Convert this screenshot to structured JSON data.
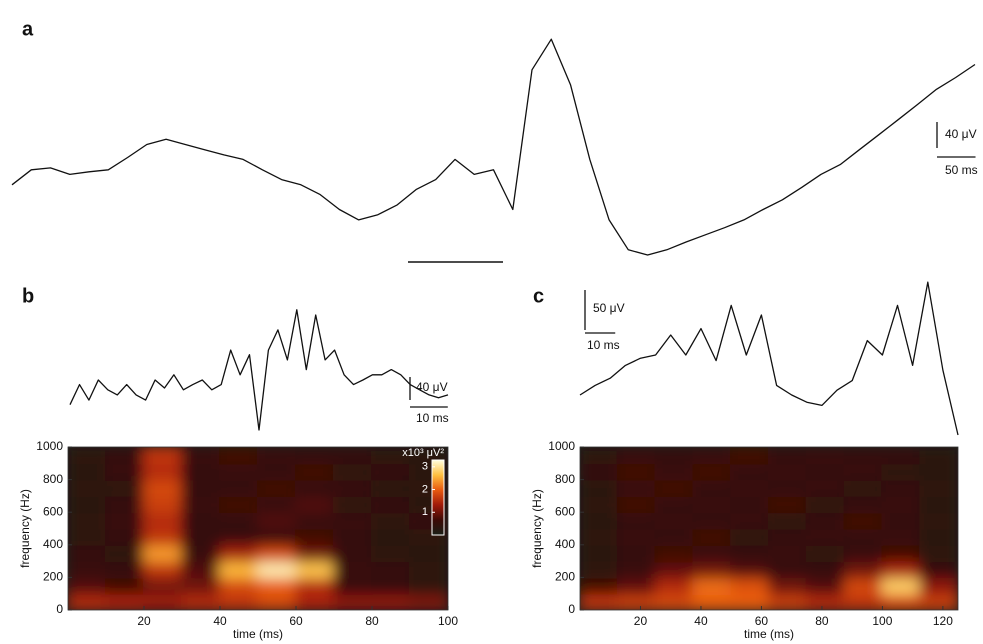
{
  "chart_data": [
    {
      "type": "line",
      "panel": "a",
      "color": "#111111",
      "x": [
        0,
        25,
        50,
        75,
        100,
        125,
        150,
        175,
        200,
        225,
        250,
        275,
        300,
        325,
        350,
        375,
        400,
        425,
        450,
        475,
        500,
        525,
        550,
        575,
        600,
        625,
        650,
        675,
        700,
        725,
        750,
        775,
        800,
        825,
        850,
        875,
        900,
        925,
        950,
        975,
        1000,
        1025,
        1050,
        1075,
        1100,
        1125,
        1150,
        1175,
        1200,
        1225,
        1250
      ],
      "values": [
        123,
        146,
        149,
        139,
        143,
        146,
        165,
        185,
        193,
        185,
        177,
        169,
        162,
        146,
        131,
        123,
        108,
        85,
        69,
        77,
        92,
        116,
        131,
        162,
        139,
        146,
        85,
        300,
        347,
        277,
        162,
        69,
        23,
        15,
        23,
        35,
        46,
        57,
        69,
        85,
        100,
        119,
        139,
        154,
        177,
        200,
        223,
        246,
        270,
        288,
        308
      ],
      "scalebars": [
        {
          "value": 40,
          "label": "40 μV",
          "axis": "y"
        },
        {
          "value": 50,
          "label": "50 ms",
          "axis": "x"
        }
      ]
    },
    {
      "type": "line",
      "panel": "b",
      "color": "#111111",
      "x": [
        0,
        2.5,
        5,
        7.5,
        10,
        12.5,
        15,
        17.5,
        20,
        22.5,
        25,
        27.5,
        30,
        32.5,
        35,
        37.5,
        40,
        42.5,
        45,
        47.5,
        50,
        52.5,
        55,
        57.5,
        60,
        62.5,
        65,
        67.5,
        70,
        72.5,
        75,
        77.5,
        80,
        82.5,
        85,
        87.5,
        90,
        92.5,
        95,
        97.5,
        100
      ],
      "values": [
        96,
        131,
        104,
        139,
        122,
        113,
        131,
        113,
        104,
        139,
        125,
        148,
        122,
        131,
        139,
        122,
        131,
        191,
        148,
        183,
        52,
        191,
        226,
        174,
        261,
        157,
        252,
        174,
        191,
        148,
        131,
        139,
        148,
        148,
        157,
        148,
        131,
        122,
        113,
        108,
        113
      ],
      "scalebars": [
        {
          "value": 40,
          "label": "40 μV",
          "axis": "y"
        },
        {
          "value": 10,
          "label": "10 ms",
          "axis": "x"
        }
      ]
    },
    {
      "type": "heatmap",
      "xlabel": "time (ms)",
      "ylabel": "frequency (Hz)",
      "xlim": [
        0,
        100
      ],
      "ylim": [
        0,
        1000
      ],
      "xticks": [
        20,
        40,
        60,
        80,
        100
      ],
      "yticks": [
        0,
        200,
        400,
        600,
        800,
        1000
      ],
      "xbins": [
        0,
        10,
        20,
        30,
        40,
        50,
        60,
        70,
        80,
        90,
        100
      ],
      "ybins": [
        0,
        100,
        200,
        300,
        400,
        500,
        600,
        700,
        800,
        900,
        1000
      ],
      "z": [
        [
          1.5,
          1.4,
          1.3,
          1.5,
          1.6,
          1.8,
          1.4,
          1.2,
          1.2,
          1.1
        ],
        [
          0.8,
          0.7,
          1.0,
          1.0,
          1.8,
          2.0,
          1.5,
          0.6,
          0.5,
          0.4
        ],
        [
          0.6,
          0.5,
          1.6,
          0.8,
          2.6,
          3.1,
          2.7,
          0.6,
          0.5,
          0.4
        ],
        [
          0.5,
          0.4,
          2.4,
          0.6,
          1.4,
          1.8,
          1.0,
          0.5,
          0.4,
          0.3
        ],
        [
          0.4,
          0.5,
          1.6,
          0.5,
          0.6,
          0.6,
          0.7,
          0.5,
          0.3,
          0.4
        ],
        [
          0.4,
          0.6,
          1.5,
          0.5,
          0.5,
          0.8,
          0.6,
          0.6,
          0.4,
          0.5
        ],
        [
          0.3,
          0.5,
          1.7,
          0.6,
          0.7,
          0.6,
          0.8,
          0.4,
          0.5,
          0.3
        ],
        [
          0.4,
          0.4,
          1.8,
          0.5,
          0.5,
          0.7,
          0.5,
          0.6,
          0.3,
          0.4
        ],
        [
          0.3,
          0.6,
          1.5,
          0.5,
          0.6,
          0.5,
          0.7,
          0.4,
          0.5,
          0.3
        ],
        [
          0.4,
          0.5,
          1.6,
          0.6,
          0.7,
          0.6,
          0.5,
          0.5,
          0.4,
          0.3
        ]
      ],
      "colorbar": {
        "label": "x10³ μV²",
        "lim": [
          0,
          3.3
        ],
        "ticks": [
          1,
          2,
          3
        ]
      }
    },
    {
      "type": "line",
      "panel": "c",
      "color": "#111111",
      "x": [
        0,
        5,
        10,
        15,
        20,
        25,
        30,
        35,
        40,
        45,
        50,
        55,
        60,
        65,
        70,
        75,
        80,
        85,
        90,
        95,
        100,
        105,
        110,
        115,
        120,
        125
      ],
      "values": [
        63,
        75,
        84,
        100,
        109,
        113,
        138,
        113,
        146,
        106,
        175,
        113,
        163,
        75,
        63,
        54,
        50,
        69,
        81,
        131,
        113,
        175,
        100,
        204,
        94,
        13
      ],
      "scalebars": [
        {
          "value": 50,
          "label": "50 μV",
          "axis": "y"
        },
        {
          "value": 10,
          "label": "10 ms",
          "axis": "x"
        }
      ]
    },
    {
      "type": "heatmap",
      "xlabel": "time (ms)",
      "ylabel": "frequency (Hz)",
      "xlim": [
        0,
        125
      ],
      "ylim": [
        0,
        1000
      ],
      "xticks": [
        20,
        40,
        60,
        80,
        100,
        120
      ],
      "yticks": [
        0,
        200,
        400,
        600,
        800,
        1000
      ],
      "xbins": [
        0,
        12.5,
        25,
        37.5,
        50,
        62.5,
        75,
        87.5,
        100,
        112.5,
        125
      ],
      "ybins": [
        0,
        100,
        200,
        300,
        400,
        500,
        600,
        700,
        800,
        900,
        1000
      ],
      "z": [
        [
          1.6,
          1.7,
          1.8,
          2.0,
          2.0,
          1.7,
          1.5,
          1.6,
          1.8,
          1.7
        ],
        [
          0.7,
          0.9,
          1.5,
          2.1,
          1.9,
          1.0,
          0.8,
          1.8,
          2.8,
          1.2
        ],
        [
          0.4,
          0.6,
          0.9,
          1.0,
          0.8,
          0.5,
          0.5,
          1.0,
          1.4,
          0.5
        ],
        [
          0.3,
          0.5,
          0.7,
          0.6,
          0.5,
          0.6,
          0.4,
          0.6,
          0.7,
          0.4
        ],
        [
          0.4,
          0.6,
          0.5,
          0.7,
          0.4,
          0.5,
          0.6,
          0.5,
          0.6,
          0.3
        ],
        [
          0.3,
          0.5,
          0.6,
          0.5,
          0.6,
          0.4,
          0.5,
          0.7,
          0.5,
          0.4
        ],
        [
          0.4,
          0.7,
          0.5,
          0.6,
          0.5,
          0.7,
          0.4,
          0.5,
          0.6,
          0.3
        ],
        [
          0.3,
          0.6,
          0.7,
          0.5,
          0.6,
          0.5,
          0.6,
          0.4,
          0.5,
          0.4
        ],
        [
          0.5,
          0.7,
          0.6,
          0.7,
          0.5,
          0.6,
          0.5,
          0.6,
          0.4,
          0.3
        ],
        [
          0.4,
          0.6,
          0.5,
          0.6,
          0.7,
          0.5,
          0.6,
          0.5,
          0.5,
          0.3
        ]
      ]
    }
  ]
}
